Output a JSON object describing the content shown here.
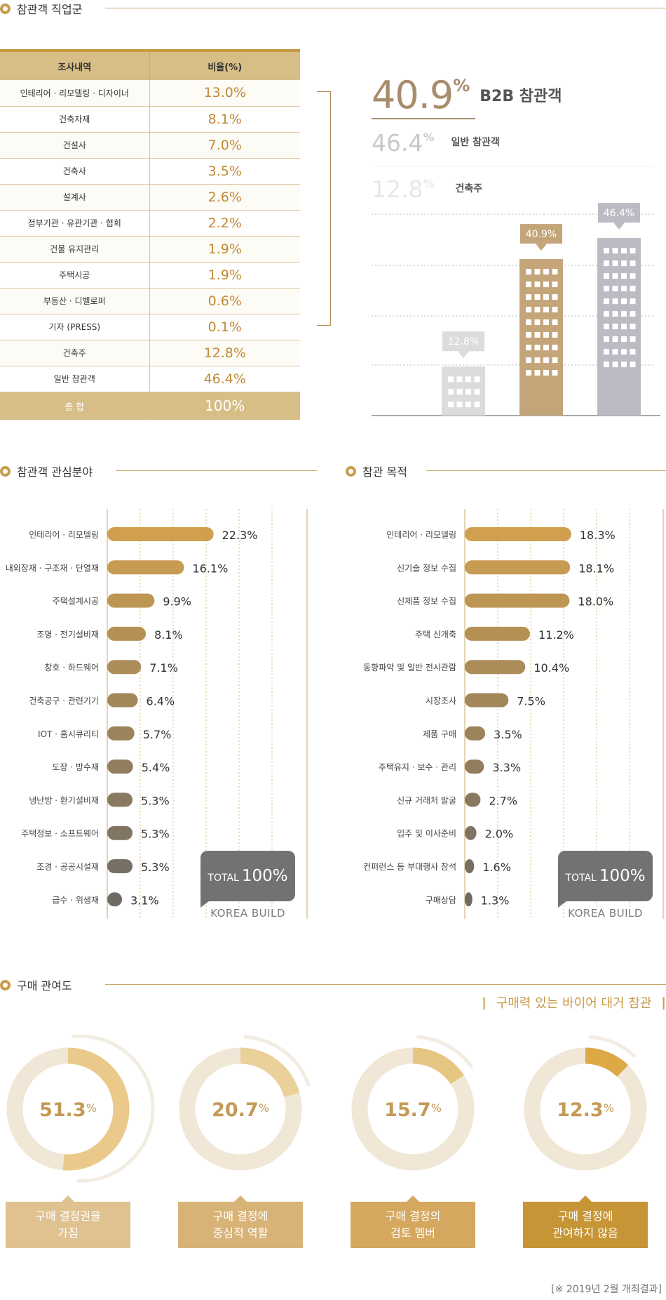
{
  "occupation": {
    "title": "참관객 직업군",
    "col_name": "조사내역",
    "col_ratio": "비율(%)",
    "rows": [
      {
        "name": "인테리어 · 리모델링 · 디자이너",
        "value": "13.0%"
      },
      {
        "name": "건축자재",
        "value": "8.1%"
      },
      {
        "name": "건설사",
        "value": "7.0%"
      },
      {
        "name": "건축사",
        "value": "3.5%"
      },
      {
        "name": "설계사",
        "value": "2.6%"
      },
      {
        "name": "정부기관 · 유관기관 · 협회",
        "value": "2.2%"
      },
      {
        "name": "건물 유지관리",
        "value": "1.9%"
      },
      {
        "name": "주택시공",
        "value": "1.9%"
      },
      {
        "name": "부동산 · 디벨로퍼",
        "value": "0.6%"
      },
      {
        "name": "기자 (PRESS)",
        "value": "0.1%"
      },
      {
        "name": "건축주",
        "value": "12.8%"
      },
      {
        "name": "일반 참관객",
        "value": "46.4%"
      }
    ],
    "total": {
      "name": "총 합",
      "value": "100%"
    }
  },
  "summary": {
    "b2b": {
      "num": "40.9",
      "pct": "%",
      "label": "B2B 참관객"
    },
    "general": {
      "num": "46.4",
      "pct": "%",
      "label": "일반 참관객"
    },
    "owner": {
      "num": "12.8",
      "pct": "%",
      "label": "건축주"
    }
  },
  "interest": {
    "title": "참관객 관심분야"
  },
  "purpose": {
    "title": "참관 목적"
  },
  "purchase": {
    "title": "구매 관여도",
    "subtitle": "구매력 있는 바이어 대거 참관",
    "bar_left": "|",
    "bar_right": "|"
  },
  "total_badge": {
    "total": "TOTAL",
    "value": "100%",
    "brand": "KOREA BUILD"
  },
  "footnote": "[※ 2019년 2월 개최결과]",
  "colors": {
    "gold": "#c89c4a",
    "bar_top": "#d0a050",
    "bar_bottom": "#6e6a66",
    "tower_light": "#dcdcdc",
    "tower_gold": "#c4a57a",
    "tower_gray": "#bcbbc4"
  },
  "chart_data": [
    {
      "type": "bar",
      "categories": [
        "건축주",
        "B2B 참관객",
        "일반 참관객"
      ],
      "values": [
        12.8,
        40.9,
        46.4
      ],
      "value_labels": [
        "12.8%",
        "40.9%",
        "46.4%"
      ]
    },
    {
      "type": "bar",
      "title": "참관객 관심분야",
      "categories": [
        "인테리어 · 리모델링",
        "내외장재 · 구조재 · 단열재",
        "주택설계시공",
        "조명 · 전기설비재",
        "창호 · 하드웨어",
        "건축공구 · 관련기기",
        "IOT · 홈시큐리티",
        "도장 · 방수재",
        "냉난방 · 환기설비재",
        "주택정보 · 소프트웨어",
        "조경 · 공공시설재",
        "급수 · 위생재"
      ],
      "values": [
        22.3,
        16.1,
        9.9,
        8.1,
        7.1,
        6.4,
        5.7,
        5.4,
        5.3,
        5.3,
        5.3,
        3.1
      ],
      "value_labels": [
        "22.3%",
        "16.1%",
        "9.9%",
        "8.1%",
        "7.1%",
        "6.4%",
        "5.7%",
        "5.4%",
        "5.3%",
        "5.3%",
        "5.3%",
        "3.1%"
      ],
      "highlight_count": 3
    },
    {
      "type": "bar",
      "title": "참관 목적",
      "categories": [
        "인테리어 · 리모델링",
        "신기술 정보 수집",
        "신제품 정보 수집",
        "주택 신개축",
        "동향파악 및 일반 전시관람",
        "시장조사",
        "제품 구매",
        "주택유지 · 보수 · 관리",
        "신규 거래처 발굴",
        "입주 및 이사준비",
        "컨퍼런스 등 부대행사 참석",
        "구매상담"
      ],
      "values": [
        18.3,
        18.1,
        18.0,
        11.2,
        10.4,
        7.5,
        3.5,
        3.3,
        2.7,
        2.0,
        1.6,
        1.3
      ],
      "value_labels": [
        "18.3%",
        "18.1%",
        "18.0%",
        "11.2%",
        "10.4%",
        "7.5%",
        "3.5%",
        "3.3%",
        "2.7%",
        "2.0%",
        "1.6%",
        "1.3%"
      ],
      "highlight_count": 3
    },
    {
      "type": "pie",
      "title": "구매 관여도",
      "categories": [
        "구매 결정권을 가짐",
        "구매 결정에 중심적 역할",
        "구매 결정의 검토 멤버",
        "구매 결정에 관여하지 않음"
      ],
      "values": [
        51.3,
        20.7,
        15.7,
        12.3
      ],
      "captions": [
        [
          "구매 결정권을",
          "가짐"
        ],
        [
          "구매 결정에",
          "중심적 역활"
        ],
        [
          "구매 결정의",
          "검토 멤버"
        ],
        [
          "구매 결정에",
          "관여하지 않음"
        ]
      ],
      "value_nums": [
        "51.3",
        "20.7",
        "15.7",
        "12.3"
      ],
      "pct": "%"
    }
  ]
}
